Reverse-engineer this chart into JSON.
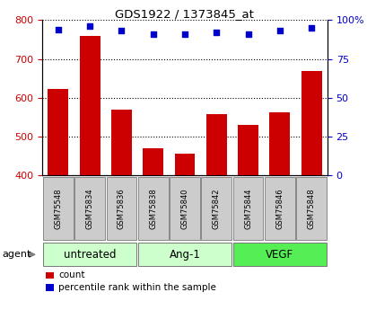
{
  "title": "GDS1922 / 1373845_at",
  "samples": [
    "GSM75548",
    "GSM75834",
    "GSM75836",
    "GSM75838",
    "GSM75840",
    "GSM75842",
    "GSM75844",
    "GSM75846",
    "GSM75848"
  ],
  "counts": [
    622,
    760,
    570,
    470,
    455,
    558,
    530,
    562,
    668
  ],
  "percentiles": [
    94,
    96,
    93,
    91,
    91,
    92,
    91,
    93,
    95
  ],
  "bar_color": "#cc0000",
  "dot_color": "#0000cc",
  "ylim_left": [
    400,
    800
  ],
  "ylim_right": [
    0,
    100
  ],
  "yticks_left": [
    400,
    500,
    600,
    700,
    800
  ],
  "yticks_right": [
    0,
    25,
    50,
    75,
    100
  ],
  "ytick_labels_right": [
    "0",
    "25",
    "50",
    "75",
    "100%"
  ],
  "groups": [
    {
      "label": "untreated",
      "start": 0,
      "end": 3,
      "color": "#ccffcc"
    },
    {
      "label": "Ang-1",
      "start": 3,
      "end": 6,
      "color": "#ccffcc"
    },
    {
      "label": "VEGF",
      "start": 6,
      "end": 9,
      "color": "#55ee55"
    }
  ],
  "agent_label": "agent",
  "legend_count": "count",
  "legend_percentile": "percentile rank within the sample",
  "background_color": "#ffffff",
  "sample_box_color": "#cccccc",
  "sample_box_edge": "#888888",
  "base_value": 400
}
